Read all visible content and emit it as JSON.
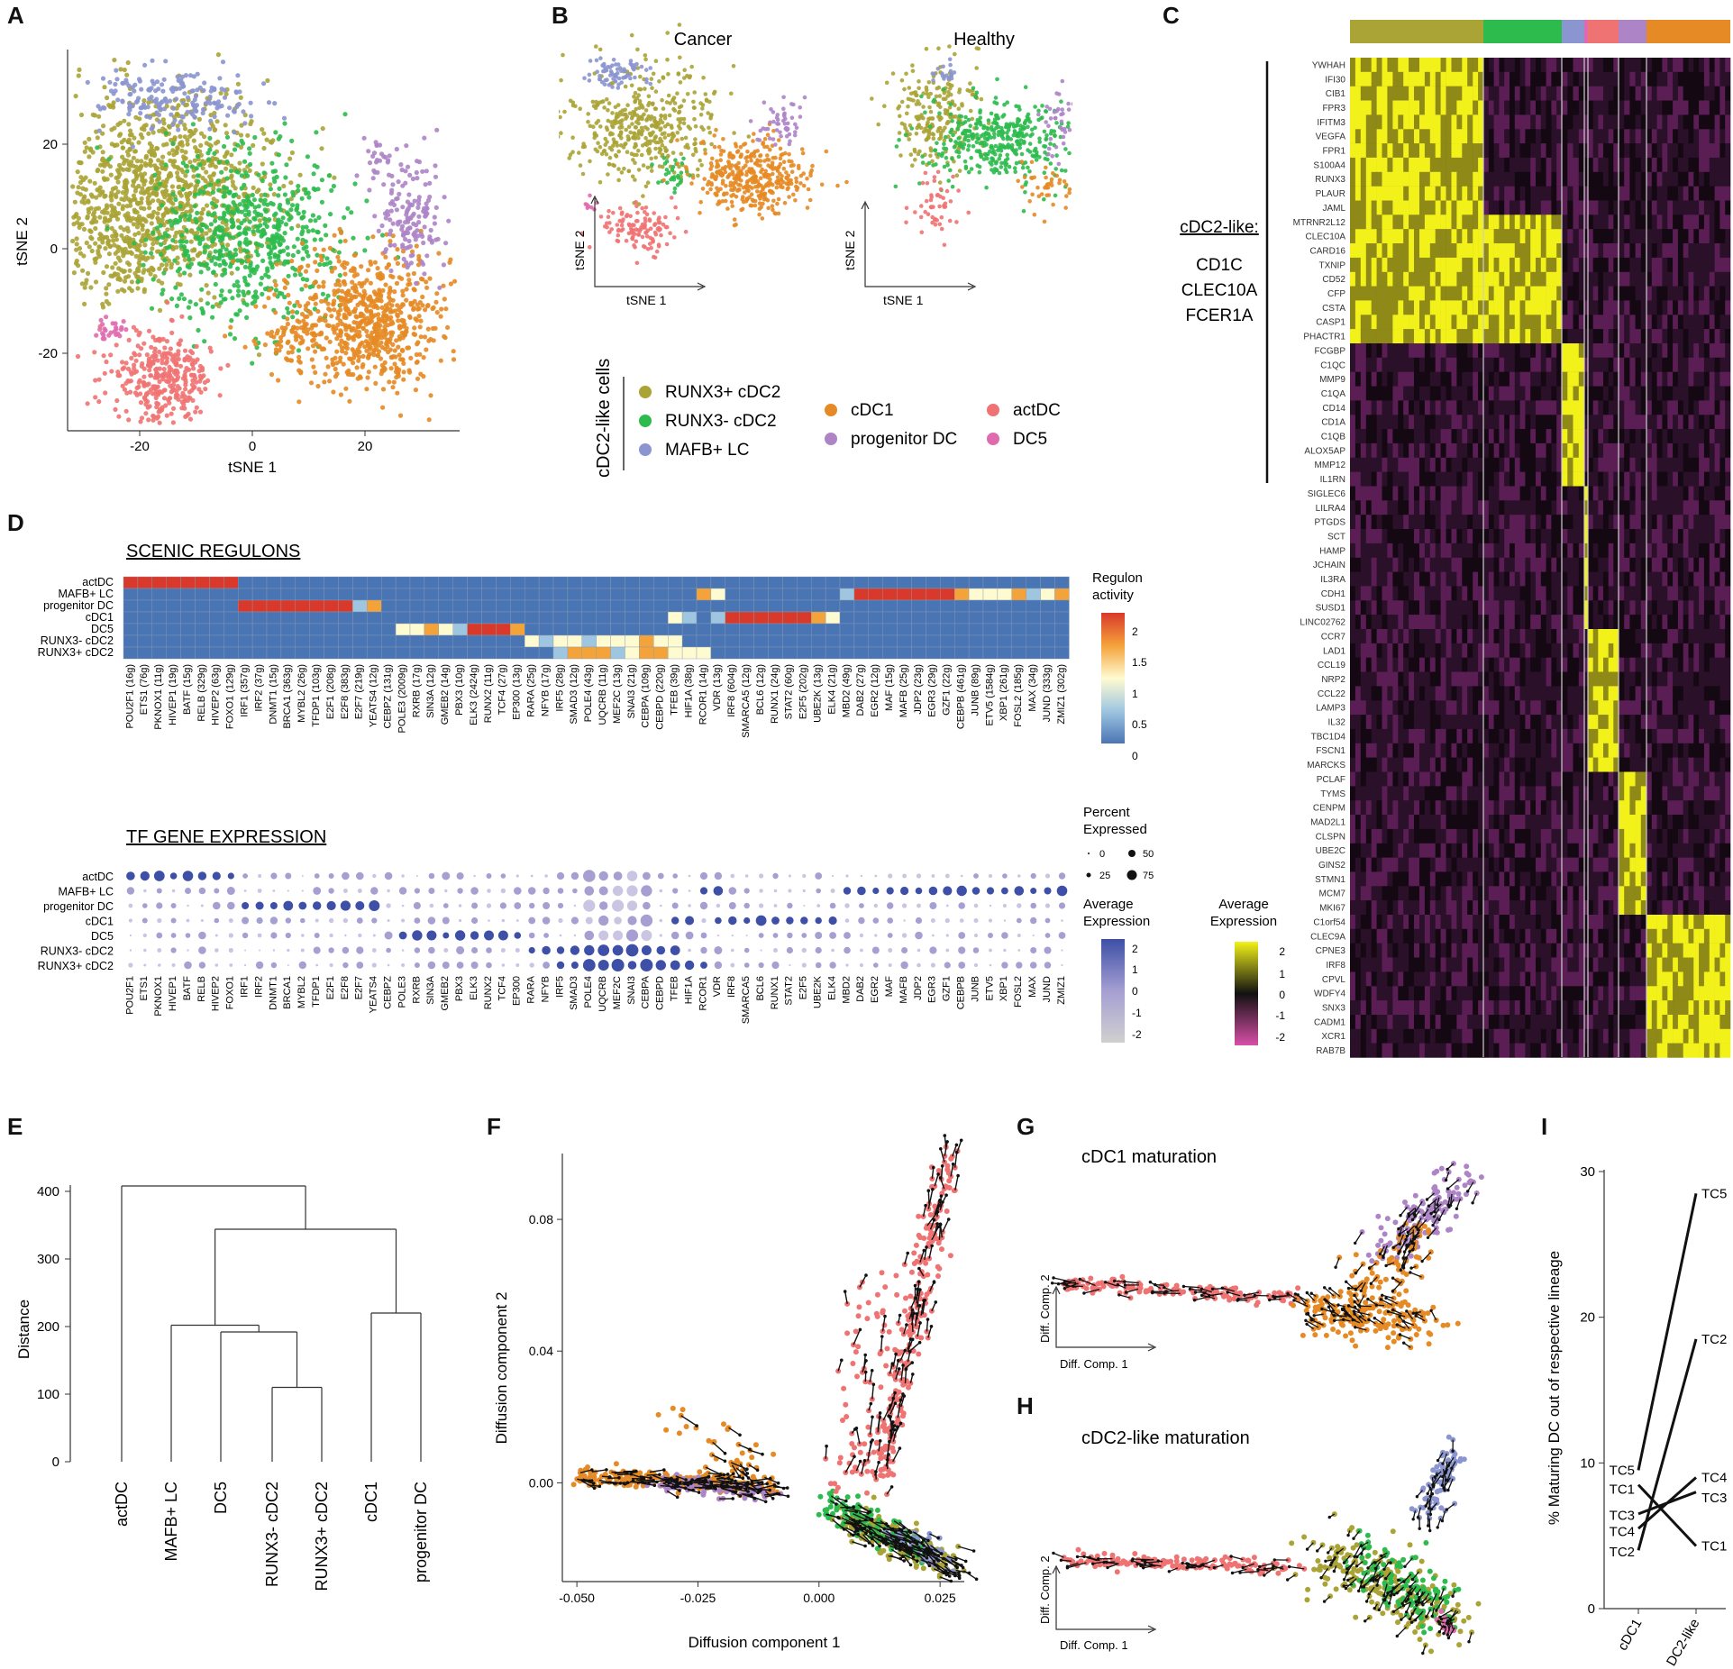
{
  "colors": {
    "RUNX3_pos": "#aaa335",
    "RUNX3_neg": "#2ebb4e",
    "MAFB": "#8b95cf",
    "cDC1": "#e58a24",
    "progenitor": "#ad84c6",
    "actDC": "#ef7372",
    "DC5": "#e06aae",
    "heat_low": "#d94fa8",
    "heat_mid": "#111111",
    "heat_high": "#f2f21a",
    "reg_low": "#4a75b4",
    "reg_mid": "#fffbd0",
    "reg_high": "#d9392b",
    "dot_high": "#3d4fa6",
    "dot_low": "#d0d0d0"
  },
  "panel_labels": [
    "A",
    "B",
    "C",
    "D",
    "E",
    "F",
    "G",
    "H",
    "I"
  ],
  "panelA": {
    "xlabel": "tSNE 1",
    "ylabel": "tSNE 2",
    "xticks": [
      "-20",
      "0",
      "20"
    ],
    "yticks": [
      "20",
      "0",
      "-20"
    ]
  },
  "panelB": {
    "cancer_title": "Cancer",
    "healthy_title": "Healthy",
    "xlabel": "tSNE 1",
    "ylabel": "tSNE 2",
    "legend_group": "cDC2-like cells",
    "legend": [
      "RUNX3+ cDC2",
      "RUNX3- cDC2",
      "MAFB+ LC",
      "cDC1",
      "progenitor DC",
      "actDC",
      "DC5"
    ]
  },
  "panelC": {
    "bracket_title": "cDC2-like:",
    "markers": [
      "CD1C",
      "CLEC10A",
      "FCER1A"
    ],
    "legend_title": [
      "Average",
      "Expression"
    ],
    "legend_ticks": [
      "2",
      "1",
      "0",
      "-1",
      "-2"
    ],
    "genes": [
      "YWHAH",
      "IFI30",
      "CIB1",
      "FPR3",
      "IFITM3",
      "VEGFA",
      "FPR1",
      "S100A4",
      "RUNX3",
      "PLAUR",
      "JAML",
      "MTRNR2L12",
      "CLEC10A",
      "CARD16",
      "TXNIP",
      "CD52",
      "CFP",
      "CSTA",
      "CASP1",
      "PHACTR1",
      "FCGBP",
      "C1QC",
      "MMP9",
      "C1QA",
      "CD14",
      "CD1A",
      "C1QB",
      "ALOX5AP",
      "MMP12",
      "IL1RN",
      "SIGLEC6",
      "LILRA4",
      "PTGDS",
      "SCT",
      "HAMP",
      "JCHAIN",
      "IL3RA",
      "CDH1",
      "SUSD1",
      "LINC02762",
      "CCR7",
      "LAD1",
      "CCL19",
      "NRP2",
      "CCL22",
      "LAMP3",
      "IL32",
      "TBC1D4",
      "FSCN1",
      "MARCKS",
      "PCLAF",
      "TYMS",
      "CENPM",
      "MAD2L1",
      "CLSPN",
      "UBE2C",
      "GINS2",
      "STMN1",
      "MCM7",
      "MKI67",
      "C1orf54",
      "CLEC9A",
      "CPNE3",
      "IRF8",
      "CPVL",
      "WDFY4",
      "SNX3",
      "CADM1",
      "XCR1",
      "RAB7B"
    ]
  },
  "panelD": {
    "scenic_title": "SCENIC REGULONS",
    "tf_title": "TF GENE EXPRESSION",
    "rows_scenic": [
      "actDC",
      "MAFB+ LC",
      "progenitor DC",
      "cDC1",
      "DC5",
      "RUNX3- cDC2",
      "RUNX3+ cDC2"
    ],
    "rows_tf": [
      "actDC",
      "MAFB+ LC",
      "progenitor DC",
      "cDC1",
      "DC5",
      "RUNX3- cDC2",
      "RUNX3+ cDC2"
    ],
    "regulons": [
      "POU2F1 (16g)",
      "ETS1 (76g)",
      "PKNOX1 (11g)",
      "HIVEP1 (19g)",
      "BATF (15g)",
      "RELB (329g)",
      "HIVEP2 (63g)",
      "FOXO1 (129g)",
      "IRF1 (357g)",
      "IRF2 (37g)",
      "DNMT1 (15g)",
      "BRCA1 (363g)",
      "MYBL2 (26g)",
      "TFDP1 (103g)",
      "E2F1 (208g)",
      "E2F8 (383g)",
      "E2F7 (219g)",
      "YEATS4 (12g)",
      "CEBPZ (131g)",
      "POLE3 (2009g)",
      "RXRB (17g)",
      "SIN3A (12g)",
      "GMEB2 (14g)",
      "PBX3 (10g)",
      "ELK3 (2424g)",
      "RUNX2 (11g)",
      "TCF4 (27g)",
      "EP300 (13g)",
      "RARA (25g)",
      "NFYB (17g)",
      "IRF5 (28g)",
      "SMAD3 (12g)",
      "POLE4 (43g)",
      "UQCRB (11g)",
      "MEF2C (13g)",
      "SNAI3 (21g)",
      "CEBPA (109g)",
      "CEBPD (220g)",
      "TFEB (39g)",
      "HIF1A (38g)",
      "RCOR1 (14g)",
      "VDR (13g)",
      "IRF8 (604g)",
      "SMARCA5 (12g)",
      "BCL6 (12g)",
      "RUNX1 (24g)",
      "STAT2 (60g)",
      "E2F5 (202g)",
      "UBE2K (13g)",
      "ELK4 (21g)",
      "MBD2 (49g)",
      "DAB2 (27g)",
      "EGR2 (12g)",
      "MAF (15g)",
      "MAFB (25g)",
      "JDP2 (23g)",
      "EGR3 (29g)",
      "GZF1 (22g)",
      "CEBPB (461g)",
      "JUNB (89g)",
      "ETV5 (1584g)",
      "XBP1 (261g)",
      "FOSL2 (185g)",
      "MAX (34g)",
      "JUND (333g)",
      "ZMIZ1 (302g)"
    ],
    "tf_genes": [
      "POU2F1",
      "ETS1",
      "PKNOX1",
      "HIVEP1",
      "BATF",
      "RELB",
      "HIVEP2",
      "FOXO1",
      "IRF1",
      "IRF2",
      "DNMT1",
      "BRCA1",
      "MYBL2",
      "TFDP1",
      "E2F1",
      "E2F8",
      "E2F7",
      "YEATS4",
      "CEBPZ",
      "POLE3",
      "RXRB",
      "SIN3A",
      "GMEB2",
      "PBX3",
      "ELK3",
      "RUNX2",
      "TCF4",
      "EP300",
      "RARA",
      "NFYB",
      "IRF5",
      "SMAD3",
      "POLE4",
      "UQCRB",
      "MEF2C",
      "SNAI3",
      "CEBPA",
      "CEBPD",
      "TFEB",
      "HIF1A",
      "RCOR1",
      "VDR",
      "IRF8",
      "SMARCA5",
      "BCL6",
      "RUNX1",
      "STAT2",
      "E2F5",
      "UBE2K",
      "ELK4",
      "MBD2",
      "DAB2",
      "EGR2",
      "MAF",
      "MAFB",
      "JDP2",
      "EGR3",
      "GZF1",
      "CEBPB",
      "JUNB",
      "ETV5",
      "XBP1",
      "FOSL2",
      "MAX",
      "JUND",
      "ZMIZ1"
    ],
    "regulon_legend_title": [
      "Regulon",
      "activity"
    ],
    "regulon_legend_ticks": [
      "2",
      "1.5",
      "1",
      "0.5",
      "0"
    ],
    "pct_legend_title": [
      "Percent",
      "Expressed"
    ],
    "pct_legend_labels": [
      "0",
      "25",
      "50",
      "75"
    ],
    "avg_legend_title": [
      "Average",
      "Expression"
    ],
    "avg_legend_ticks": [
      "2",
      "1",
      "0",
      "-1",
      "-2"
    ]
  },
  "chart_data": [
    {
      "type": "dendrogram",
      "panel": "E",
      "ylabel": "Distance",
      "ylim": [
        0,
        400
      ],
      "yticks": [
        "400",
        "300",
        "200",
        "100",
        "0"
      ],
      "leaves": [
        "actDC",
        "MAFB+ LC",
        "DC5",
        "RUNX3- cDC2",
        "RUNX3+ cDC2",
        "cDC1",
        "progenitor DC"
      ],
      "merges": [
        {
          "left": "RUNX3- cDC2",
          "right": "RUNX3+ cDC2",
          "height": 110
        },
        {
          "left": "DC5",
          "right": "RUNX3 pair",
          "height": 192
        },
        {
          "left": "MAFB+ LC",
          "right": "DC5 cluster",
          "height": 202
        },
        {
          "left": "cDC1",
          "right": "progenitor DC",
          "height": 220
        },
        {
          "left": "cDC2-like group",
          "right": "cDC1 group",
          "height": 344
        },
        {
          "left": "actDC",
          "right": "rest",
          "height": 408
        }
      ]
    },
    {
      "type": "scatter",
      "panel": "F",
      "xlabel": "Diffusion component 1",
      "ylabel": "Diffusion component 2",
      "xticks": [
        "-0.050",
        "-0.025",
        "0.000",
        "0.025"
      ],
      "yticks": [
        "0.08",
        "0.04",
        "0.00"
      ],
      "xlim": [
        -0.053,
        0.03
      ],
      "ylim": [
        -0.03,
        0.1
      ]
    },
    {
      "type": "scatter",
      "panel": "G",
      "title": "cDC1 maturation",
      "xlabel": "Diff. Comp. 1",
      "ylabel": "Diff. Comp. 2"
    },
    {
      "type": "scatter",
      "panel": "H",
      "title": "cDC2-like maturation",
      "xlabel": "Diff. Comp. 1",
      "ylabel": "Diff. Comp. 2"
    },
    {
      "type": "line",
      "panel": "I",
      "ylabel": "% Maturing DC out of respective lineage",
      "categories": [
        "cDC1",
        "DC2-like"
      ],
      "ylim": [
        0,
        30
      ],
      "yticks": [
        "30",
        "20",
        "10",
        "0"
      ],
      "series": [
        {
          "name": "TC5",
          "values": [
            9.5,
            28.5
          ]
        },
        {
          "name": "TC1",
          "values": [
            8.5,
            4.3
          ]
        },
        {
          "name": "TC3",
          "values": [
            6.5,
            8.0
          ]
        },
        {
          "name": "TC4",
          "values": [
            5.5,
            9.0
          ]
        },
        {
          "name": "TC2",
          "values": [
            4.0,
            18.5
          ]
        }
      ],
      "left_labels": [
        "TC5",
        "TC1",
        "TC3",
        "TC4",
        "TC2"
      ],
      "right_labels": [
        "TC5",
        "TC2",
        "TC4",
        "TC3",
        "TC1"
      ]
    }
  ]
}
